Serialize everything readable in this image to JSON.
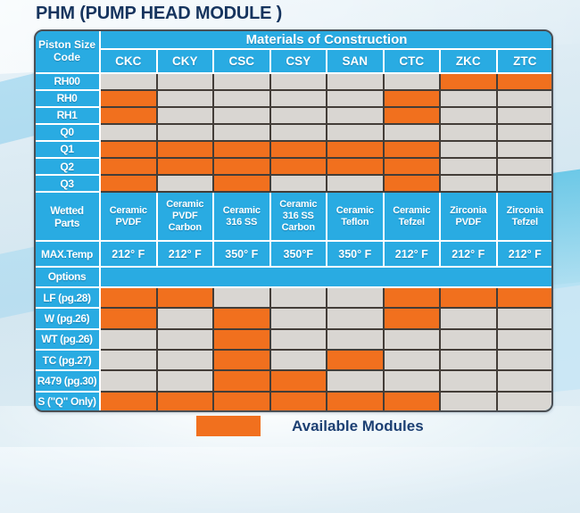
{
  "title": "PHM (PUMP HEAD MODULE )",
  "colors": {
    "header_blue": "#29ABE2",
    "available_orange": "#F1701E",
    "unavailable_gray": "#D9D6D2",
    "title_navy": "#16345E"
  },
  "table": {
    "corner_label_lines": [
      "Piston Size",
      "Code"
    ],
    "group_header": "Materials of Construction",
    "columns": [
      "CKC",
      "CKY",
      "CSC",
      "CSY",
      "SAN",
      "CTC",
      "ZKC",
      "ZTC"
    ],
    "piston_rows": [
      {
        "label": "RH00",
        "available": [
          0,
          0,
          0,
          0,
          0,
          0,
          1,
          1
        ]
      },
      {
        "label": "RH0",
        "available": [
          1,
          0,
          0,
          0,
          0,
          1,
          0,
          0
        ]
      },
      {
        "label": "RH1",
        "available": [
          1,
          0,
          0,
          0,
          0,
          1,
          0,
          0
        ]
      },
      {
        "label": "Q0",
        "available": [
          0,
          0,
          0,
          0,
          0,
          0,
          0,
          0
        ]
      },
      {
        "label": "Q1",
        "available": [
          1,
          1,
          1,
          1,
          1,
          1,
          0,
          0
        ]
      },
      {
        "label": "Q2",
        "available": [
          1,
          1,
          1,
          1,
          1,
          1,
          0,
          0
        ]
      },
      {
        "label": "Q3",
        "available": [
          1,
          0,
          1,
          0,
          0,
          1,
          0,
          0
        ]
      }
    ],
    "wetted_parts": {
      "label_lines": [
        "Wetted",
        "Parts"
      ],
      "values": [
        [
          "Ceramic",
          "PVDF"
        ],
        [
          "Ceramic",
          "PVDF",
          "Carbon"
        ],
        [
          "Ceramic",
          "316 SS"
        ],
        [
          "Ceramic",
          "316 SS",
          "Carbon"
        ],
        [
          "Ceramic",
          "Teflon"
        ],
        [
          "Ceramic",
          "Tefzel"
        ],
        [
          "Zirconia",
          "PVDF"
        ],
        [
          "Zirconia",
          "Tefzel"
        ]
      ]
    },
    "max_temp": {
      "label": "MAX.Temp",
      "values": [
        "212° F",
        "212° F",
        "350° F",
        "350°F",
        "350° F",
        "212° F",
        "212° F",
        "212° F"
      ]
    },
    "options_header": "Options",
    "option_rows": [
      {
        "label": "LF (pg.28)",
        "available": [
          1,
          1,
          0,
          0,
          0,
          1,
          1,
          1
        ]
      },
      {
        "label": "W (pg.26)",
        "available": [
          1,
          0,
          1,
          0,
          0,
          1,
          0,
          0
        ]
      },
      {
        "label": "WT (pg.26)",
        "available": [
          0,
          0,
          1,
          0,
          0,
          0,
          0,
          0
        ]
      },
      {
        "label": "TC (pg.27)",
        "available": [
          0,
          0,
          1,
          0,
          1,
          0,
          0,
          0
        ]
      },
      {
        "label": "R479 (pg.30)",
        "available": [
          0,
          0,
          1,
          1,
          0,
          0,
          0,
          0
        ]
      },
      {
        "label": "S (\"Q\" Only)",
        "available": [
          1,
          1,
          1,
          1,
          1,
          1,
          0,
          0
        ]
      }
    ]
  },
  "legend": {
    "label": "Available Modules"
  }
}
